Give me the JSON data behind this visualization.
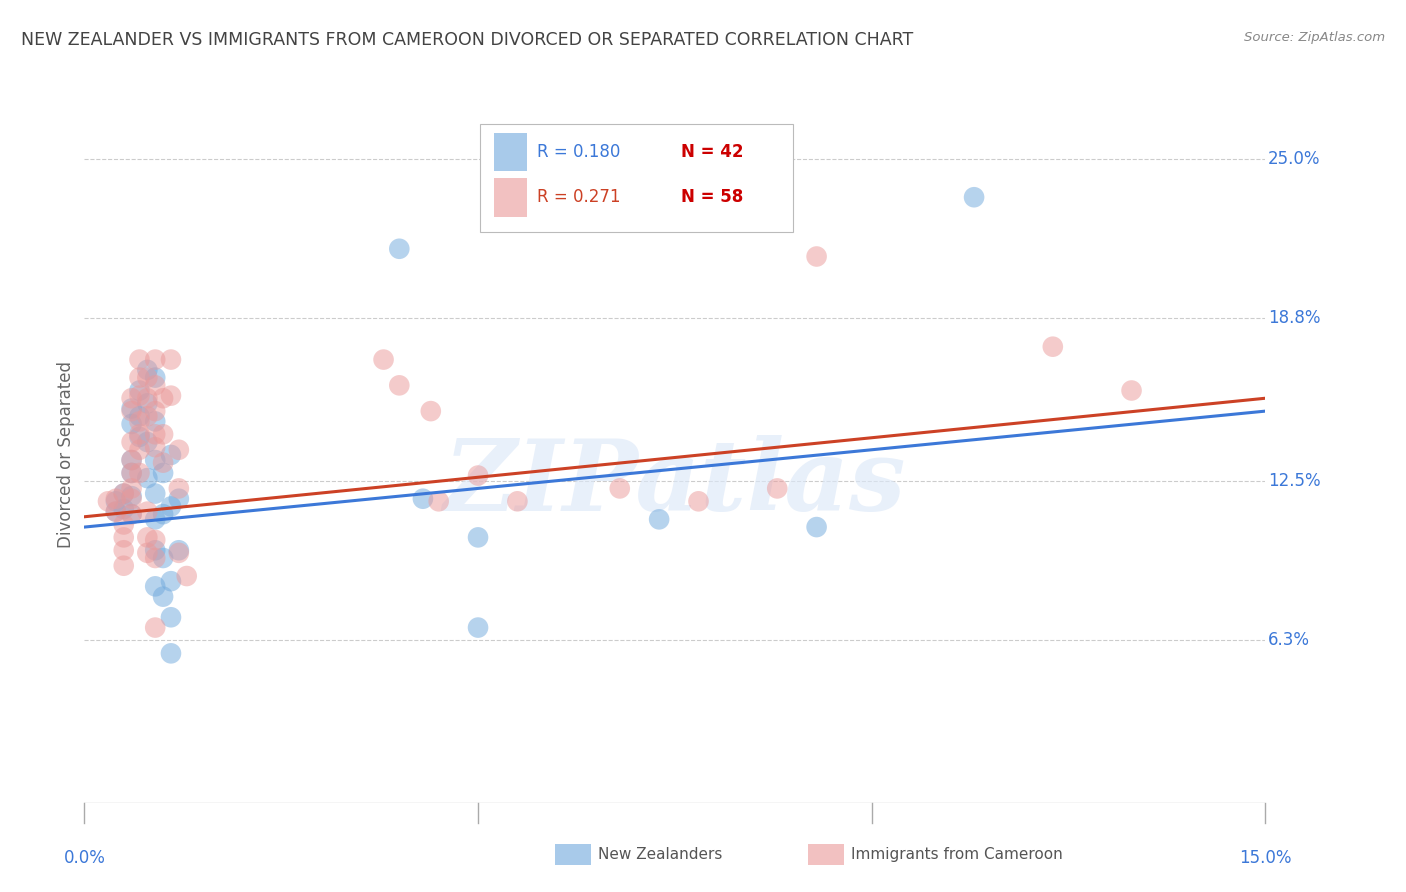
{
  "title": "NEW ZEALANDER VS IMMIGRANTS FROM CAMEROON DIVORCED OR SEPARATED CORRELATION CHART",
  "source": "Source: ZipAtlas.com",
  "ylabel": "Divorced or Separated",
  "ytick_labels": [
    "25.0%",
    "18.8%",
    "12.5%",
    "6.3%"
  ],
  "ytick_values": [
    0.25,
    0.188,
    0.125,
    0.063
  ],
  "xtick_labels": [
    "0.0%",
    "15.0%"
  ],
  "xtick_positions": [
    0.0,
    0.15
  ],
  "xmin": 0.0,
  "xmax": 0.15,
  "ymin": 0.0,
  "ymax": 0.27,
  "legend_r1": "R = 0.180",
  "legend_n1": "N = 42",
  "legend_r2": "R = 0.271",
  "legend_n2": "N = 58",
  "legend_footer": [
    "New Zealanders",
    "Immigrants from Cameroon"
  ],
  "blue_color": "#6fa8dc",
  "pink_color": "#ea9999",
  "blue_line_color": "#3c78d8",
  "pink_line_color": "#cc4125",
  "r_text_color": "#3c78d8",
  "n_text_color": "#cc0000",
  "r2_text_color": "#cc4125",
  "background_color": "#ffffff",
  "grid_color": "#cccccc",
  "title_color": "#434343",
  "ylabel_color": "#666666",
  "axis_label_color": "#3c78d8",
  "watermark": "ZIPatlas",
  "nz_points": [
    [
      0.004,
      0.117
    ],
    [
      0.004,
      0.113
    ],
    [
      0.005,
      0.12
    ],
    [
      0.005,
      0.114
    ],
    [
      0.006,
      0.153
    ],
    [
      0.006,
      0.147
    ],
    [
      0.006,
      0.133
    ],
    [
      0.006,
      0.128
    ],
    [
      0.006,
      0.119
    ],
    [
      0.006,
      0.112
    ],
    [
      0.007,
      0.16
    ],
    [
      0.007,
      0.15
    ],
    [
      0.007,
      0.142
    ],
    [
      0.008,
      0.168
    ],
    [
      0.008,
      0.155
    ],
    [
      0.008,
      0.14
    ],
    [
      0.008,
      0.126
    ],
    [
      0.009,
      0.165
    ],
    [
      0.009,
      0.148
    ],
    [
      0.009,
      0.133
    ],
    [
      0.009,
      0.12
    ],
    [
      0.009,
      0.11
    ],
    [
      0.009,
      0.098
    ],
    [
      0.009,
      0.084
    ],
    [
      0.01,
      0.128
    ],
    [
      0.01,
      0.112
    ],
    [
      0.01,
      0.095
    ],
    [
      0.01,
      0.08
    ],
    [
      0.011,
      0.135
    ],
    [
      0.011,
      0.115
    ],
    [
      0.011,
      0.086
    ],
    [
      0.011,
      0.072
    ],
    [
      0.011,
      0.058
    ],
    [
      0.012,
      0.118
    ],
    [
      0.012,
      0.098
    ],
    [
      0.04,
      0.215
    ],
    [
      0.043,
      0.118
    ],
    [
      0.05,
      0.103
    ],
    [
      0.05,
      0.068
    ],
    [
      0.073,
      0.11
    ],
    [
      0.093,
      0.107
    ],
    [
      0.113,
      0.235
    ]
  ],
  "cam_points": [
    [
      0.003,
      0.117
    ],
    [
      0.004,
      0.118
    ],
    [
      0.004,
      0.113
    ],
    [
      0.005,
      0.12
    ],
    [
      0.005,
      0.108
    ],
    [
      0.005,
      0.103
    ],
    [
      0.005,
      0.098
    ],
    [
      0.005,
      0.092
    ],
    [
      0.006,
      0.157
    ],
    [
      0.006,
      0.152
    ],
    [
      0.006,
      0.14
    ],
    [
      0.006,
      0.133
    ],
    [
      0.006,
      0.128
    ],
    [
      0.006,
      0.122
    ],
    [
      0.006,
      0.118
    ],
    [
      0.006,
      0.112
    ],
    [
      0.007,
      0.172
    ],
    [
      0.007,
      0.165
    ],
    [
      0.007,
      0.158
    ],
    [
      0.007,
      0.148
    ],
    [
      0.007,
      0.143
    ],
    [
      0.007,
      0.137
    ],
    [
      0.007,
      0.128
    ],
    [
      0.008,
      0.165
    ],
    [
      0.008,
      0.157
    ],
    [
      0.008,
      0.15
    ],
    [
      0.008,
      0.113
    ],
    [
      0.008,
      0.103
    ],
    [
      0.008,
      0.097
    ],
    [
      0.009,
      0.172
    ],
    [
      0.009,
      0.162
    ],
    [
      0.009,
      0.152
    ],
    [
      0.009,
      0.143
    ],
    [
      0.009,
      0.138
    ],
    [
      0.009,
      0.102
    ],
    [
      0.009,
      0.095
    ],
    [
      0.009,
      0.068
    ],
    [
      0.01,
      0.157
    ],
    [
      0.01,
      0.143
    ],
    [
      0.01,
      0.132
    ],
    [
      0.011,
      0.172
    ],
    [
      0.011,
      0.158
    ],
    [
      0.012,
      0.137
    ],
    [
      0.012,
      0.122
    ],
    [
      0.012,
      0.097
    ],
    [
      0.013,
      0.088
    ],
    [
      0.038,
      0.172
    ],
    [
      0.04,
      0.162
    ],
    [
      0.044,
      0.152
    ],
    [
      0.045,
      0.117
    ],
    [
      0.05,
      0.127
    ],
    [
      0.055,
      0.117
    ],
    [
      0.068,
      0.122
    ],
    [
      0.078,
      0.117
    ],
    [
      0.088,
      0.122
    ],
    [
      0.093,
      0.212
    ],
    [
      0.123,
      0.177
    ],
    [
      0.133,
      0.16
    ]
  ],
  "nz_line": {
    "x0": 0.0,
    "x1": 0.15,
    "y0": 0.107,
    "y1": 0.152
  },
  "cam_line": {
    "x0": 0.0,
    "x1": 0.15,
    "y0": 0.111,
    "y1": 0.157
  }
}
